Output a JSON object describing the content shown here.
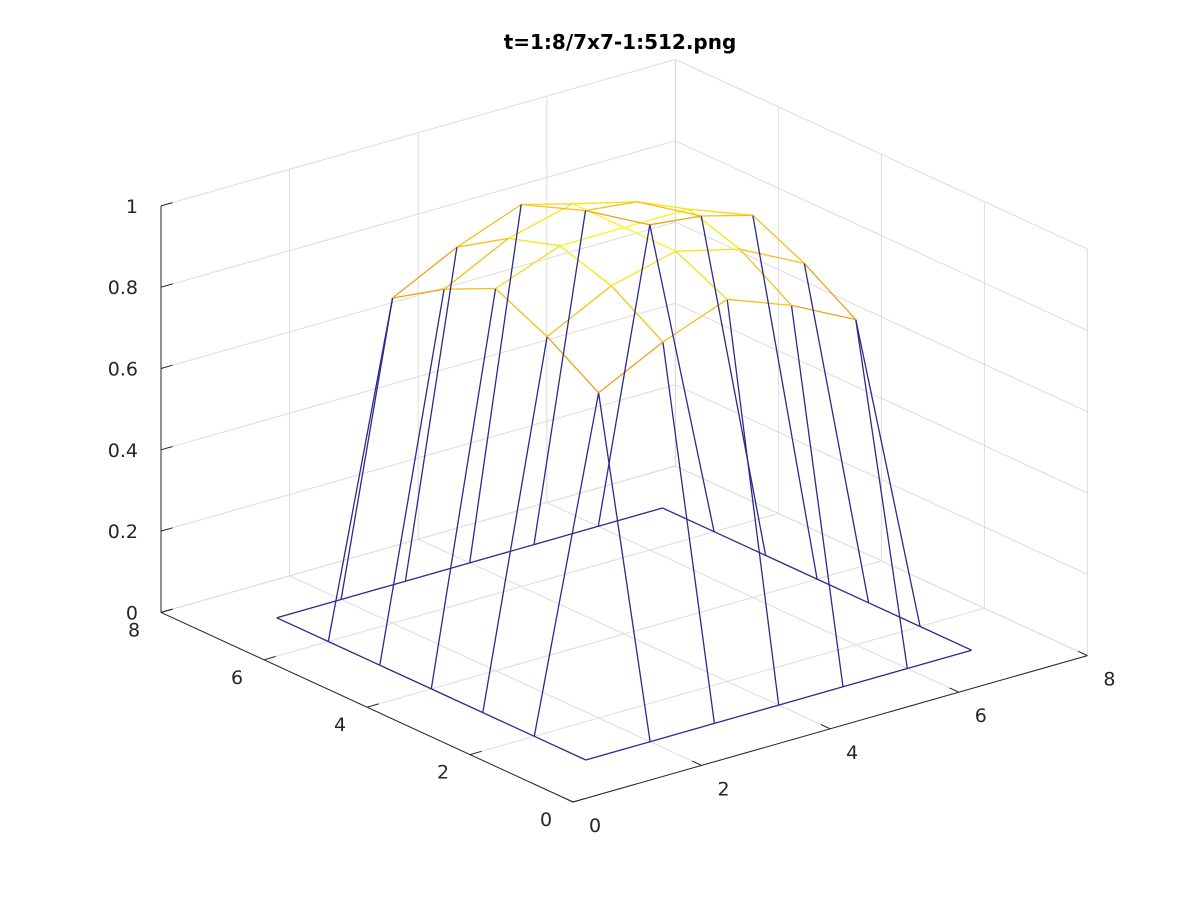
{
  "chart_data": {
    "type": "surface",
    "title": "t=1:8/7x7-1:512.png",
    "xlabel": "",
    "ylabel": "",
    "zlabel": "",
    "x": [
      1,
      2,
      3,
      4,
      5,
      6,
      7
    ],
    "y": [
      1,
      2,
      3,
      4,
      5,
      6,
      7
    ],
    "z": [
      [
        0,
        0,
        0,
        0,
        0,
        0,
        0
      ],
      [
        0,
        0.8,
        0.88,
        0.94,
        0.88,
        0.8,
        0
      ],
      [
        0,
        0.88,
        0.96,
        1.0,
        0.96,
        0.88,
        0
      ],
      [
        0,
        0.94,
        1.0,
        1.0,
        1.0,
        0.94,
        0
      ],
      [
        0,
        0.88,
        0.96,
        1.0,
        0.96,
        0.88,
        0
      ],
      [
        0,
        0.8,
        0.88,
        0.94,
        0.88,
        0.8,
        0
      ],
      [
        0,
        0,
        0,
        0,
        0,
        0,
        0
      ]
    ],
    "xlim": [
      0,
      8
    ],
    "ylim": [
      0,
      8
    ],
    "zlim": [
      0,
      1
    ],
    "xticks": [
      "0",
      "2",
      "4",
      "6",
      "8"
    ],
    "yticks": [
      "0",
      "2",
      "4",
      "6",
      "8"
    ],
    "zticks": [
      "0",
      "0.2",
      "0.4",
      "0.6",
      "0.8",
      "1"
    ],
    "grid": true,
    "colormap": [
      "#2a2a8c",
      "#f5a31a",
      "#f7f71a"
    ],
    "view": "3d-isometric"
  }
}
